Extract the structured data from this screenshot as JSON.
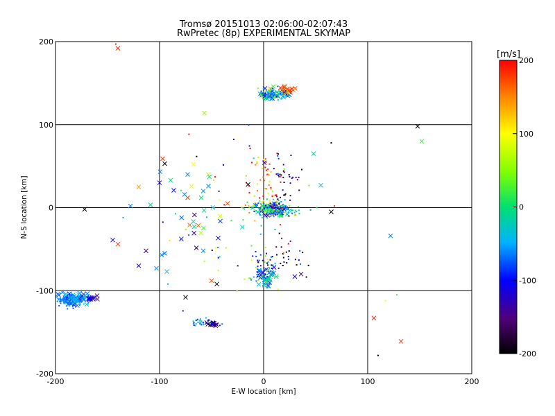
{
  "chart_data": {
    "type": "scatter",
    "title": "Tromsø 20151013 02:06:00-02:07:43",
    "subtitle": "RwPretec (8p) EXPERIMENTAL SKYMAP",
    "xlabel": "E-W location [km]",
    "ylabel": "N-S location [km]",
    "xlim": [
      -200,
      200
    ],
    "ylim": [
      -200,
      200
    ],
    "x_ticks": [
      "-200",
      "-100",
      "0",
      "100",
      "200"
    ],
    "y_ticks": [
      "-200",
      "-100",
      "0",
      "100",
      "200"
    ],
    "grid": true,
    "colorbar": {
      "label": "[m/s]",
      "range": [
        -200,
        200
      ],
      "ticks": [
        "200",
        "100",
        "0",
        "-100",
        "-200"
      ]
    },
    "clusters": [
      {
        "marker": "x",
        "center": [
          -182,
          -110
        ],
        "spread": [
          12,
          5
        ],
        "count": 70,
        "v": -60,
        "vspread": 25
      },
      {
        "marker": "x",
        "center": [
          -165,
          -109
        ],
        "spread": [
          5,
          2
        ],
        "count": 10,
        "v": -110,
        "vspread": 30
      },
      {
        "marker": "dot",
        "center": [
          -185,
          -112
        ],
        "spread": [
          12,
          6
        ],
        "count": 60,
        "v": -60,
        "vspread": 30
      },
      {
        "marker": "dot",
        "center": [
          -55,
          -138
        ],
        "spread": [
          10,
          4
        ],
        "count": 35,
        "v": -50,
        "vspread": 60
      },
      {
        "marker": "x",
        "center": [
          -50,
          -140
        ],
        "spread": [
          5,
          2
        ],
        "count": 12,
        "v": -160,
        "vspread": 40
      },
      {
        "marker": "x",
        "center": [
          8,
          137
        ],
        "spread": [
          10,
          5
        ],
        "count": 50,
        "v": -40,
        "vspread": 60
      },
      {
        "marker": "x",
        "center": [
          22,
          142
        ],
        "spread": [
          6,
          4
        ],
        "count": 20,
        "v": 170,
        "vspread": 50
      },
      {
        "marker": "dot",
        "center": [
          12,
          138
        ],
        "spread": [
          14,
          6
        ],
        "count": 40,
        "v": 0,
        "vspread": 110
      },
      {
        "marker": "x",
        "center": [
          8,
          -2
        ],
        "spread": [
          12,
          5
        ],
        "count": 60,
        "v": -45,
        "vspread": 70
      },
      {
        "marker": "dot",
        "center": [
          8,
          0
        ],
        "spread": [
          18,
          7
        ],
        "count": 120,
        "v": -20,
        "vspread": 110
      },
      {
        "marker": "dot",
        "center": [
          0,
          30
        ],
        "spread": [
          14,
          28
        ],
        "count": 60,
        "v": 160,
        "vspread": 80
      },
      {
        "marker": "dot",
        "center": [
          22,
          30
        ],
        "spread": [
          10,
          25
        ],
        "count": 35,
        "v": -170,
        "vspread": 60
      },
      {
        "marker": "x",
        "center": [
          3,
          -85
        ],
        "spread": [
          7,
          8
        ],
        "count": 35,
        "v": -60,
        "vspread": 60
      },
      {
        "marker": "dot",
        "center": [
          0,
          -75
        ],
        "spread": [
          10,
          18
        ],
        "count": 55,
        "v": -30,
        "vspread": 110
      },
      {
        "marker": "dot",
        "center": [
          25,
          -60
        ],
        "spread": [
          15,
          15
        ],
        "count": 25,
        "v": -170,
        "vspread": 60
      },
      {
        "marker": "x",
        "center": [
          -60,
          0
        ],
        "spread": [
          40,
          40
        ],
        "count": 30,
        "v": -30,
        "vspread": 150
      },
      {
        "marker": "dot",
        "center": [
          -20,
          -10
        ],
        "spread": [
          60,
          80
        ],
        "count": 60,
        "v": 0,
        "vspread": 190
      }
    ],
    "points": [
      {
        "x": -140,
        "y": 192,
        "v": 190,
        "m": "x"
      },
      {
        "x": -142,
        "y": 197,
        "v": 180,
        "m": "dot"
      },
      {
        "x": 148,
        "y": 98,
        "v": -200,
        "m": "x"
      },
      {
        "x": 152,
        "y": 80,
        "v": 20,
        "m": "x"
      },
      {
        "x": 65,
        "y": 78,
        "v": -200,
        "m": "dot"
      },
      {
        "x": -172,
        "y": -2,
        "v": -200,
        "m": "x"
      },
      {
        "x": 65,
        "y": -5,
        "v": -200,
        "m": "x"
      },
      {
        "x": 68,
        "y": 2,
        "v": 180,
        "m": "dot"
      },
      {
        "x": -97,
        "y": 59,
        "v": 180,
        "m": "x"
      },
      {
        "x": -95,
        "y": 53,
        "v": -200,
        "m": "x"
      },
      {
        "x": -57,
        "y": 114,
        "v": 60,
        "m": "x"
      },
      {
        "x": -58,
        "y": 20,
        "v": -60,
        "m": "x"
      },
      {
        "x": -53,
        "y": 26,
        "v": -60,
        "m": "x"
      },
      {
        "x": -120,
        "y": 25,
        "v": 140,
        "m": "x"
      },
      {
        "x": -128,
        "y": 2,
        "v": -60,
        "m": "x"
      },
      {
        "x": -135,
        "y": -12,
        "v": -50,
        "m": "dot"
      },
      {
        "x": -145,
        "y": -39,
        "v": -120,
        "m": "x"
      },
      {
        "x": -140,
        "y": -44,
        "v": 180,
        "m": "x"
      },
      {
        "x": -113,
        "y": -52,
        "v": -160,
        "m": "x"
      },
      {
        "x": -120,
        "y": -70,
        "v": -120,
        "m": "x"
      },
      {
        "x": -103,
        "y": -73,
        "v": -60,
        "m": "x"
      },
      {
        "x": -98,
        "y": -57,
        "v": -60,
        "m": "x"
      },
      {
        "x": -95,
        "y": -55,
        "v": -70,
        "m": "x"
      },
      {
        "x": -58,
        "y": -52,
        "v": -60,
        "m": "x"
      },
      {
        "x": -50,
        "y": -88,
        "v": 170,
        "m": "x"
      },
      {
        "x": -45,
        "y": -92,
        "v": -200,
        "m": "x"
      },
      {
        "x": -93,
        "y": -77,
        "v": -50,
        "m": "x"
      },
      {
        "x": -92,
        "y": -92,
        "v": -50,
        "m": "dot"
      },
      {
        "x": -75,
        "y": -108,
        "v": -200,
        "m": "x"
      },
      {
        "x": 106,
        "y": -133,
        "v": 190,
        "m": "x"
      },
      {
        "x": 132,
        "y": -161,
        "v": 180,
        "m": "x"
      },
      {
        "x": 110,
        "y": -178,
        "v": -200,
        "m": "dot"
      },
      {
        "x": 122,
        "y": -34,
        "v": -60,
        "m": "x"
      },
      {
        "x": 117,
        "y": -112,
        "v": 90,
        "m": "dot"
      },
      {
        "x": 128,
        "y": -105,
        "v": 20,
        "m": "dot"
      },
      {
        "x": 55,
        "y": 27,
        "v": -40,
        "m": "x"
      },
      {
        "x": 48,
        "y": 65,
        "v": -20,
        "m": "x"
      },
      {
        "x": 30,
        "y": -83,
        "v": -120,
        "m": "x"
      },
      {
        "x": 36,
        "y": -80,
        "v": -160,
        "m": "x"
      },
      {
        "x": -45,
        "y": -141,
        "v": -160,
        "m": "x"
      },
      {
        "x": -73,
        "y": 12,
        "v": 180,
        "m": "x"
      },
      {
        "x": -76,
        "y": 16,
        "v": -60,
        "m": "x"
      },
      {
        "x": -73,
        "y": 40,
        "v": -60,
        "m": "x"
      },
      {
        "x": -100,
        "y": 30,
        "v": -120,
        "m": "x"
      },
      {
        "x": -160,
        "y": -106,
        "v": -150,
        "m": "x"
      }
    ]
  }
}
